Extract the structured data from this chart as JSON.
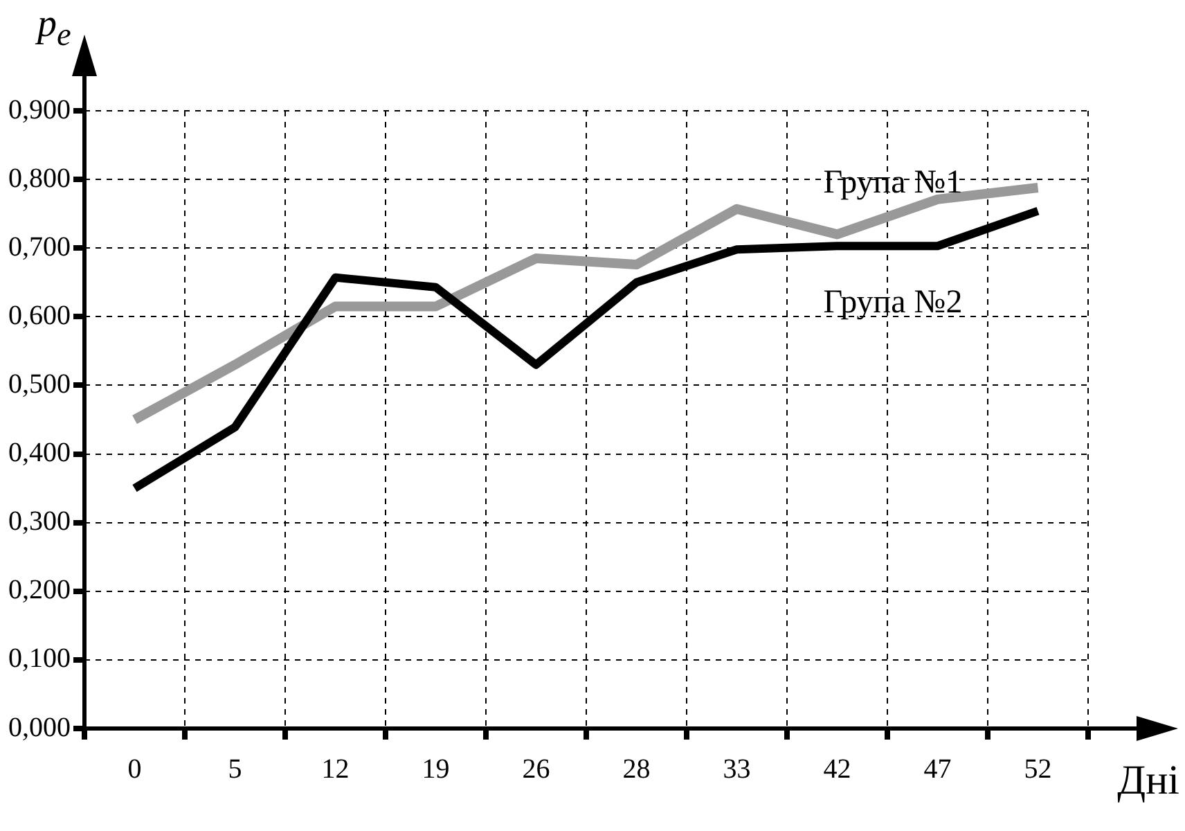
{
  "chart_data": {
    "type": "line",
    "xlabel": "Дні",
    "ylabel": "p$_{e}$",
    "categories": [
      "0",
      "5",
      "12",
      "19",
      "26",
      "28",
      "33",
      "42",
      "47",
      "52"
    ],
    "series": [
      {
        "name": "Група №1",
        "color": "#999999",
        "values": [
          0.45,
          0.53,
          0.615,
          0.615,
          0.685,
          0.676,
          0.757,
          0.72,
          0.771,
          0.788
        ]
      },
      {
        "name": "Група №2",
        "color": "#000000",
        "values": [
          0.35,
          0.439,
          0.657,
          0.643,
          0.53,
          0.65,
          0.698,
          0.703,
          0.703,
          0.754
        ]
      }
    ],
    "ylim": [
      0,
      0.9
    ],
    "yticks": [
      {
        "value": 0,
        "label": "0,000"
      },
      {
        "value": 0.1,
        "label": "0,100"
      },
      {
        "value": 0.2,
        "label": "0,200"
      },
      {
        "value": 0.3,
        "label": "0,300"
      },
      {
        "value": 0.4,
        "label": "0,400"
      },
      {
        "value": 0.5,
        "label": "0,500"
      },
      {
        "value": 0.6,
        "label": "0,600"
      },
      {
        "value": 0.7,
        "label": "0,700"
      },
      {
        "value": 0.8,
        "label": "0,800"
      },
      {
        "value": 0.9,
        "label": "0,900"
      }
    ],
    "grid": true,
    "legend": false,
    "marker": "none",
    "line_style": "solid"
  }
}
